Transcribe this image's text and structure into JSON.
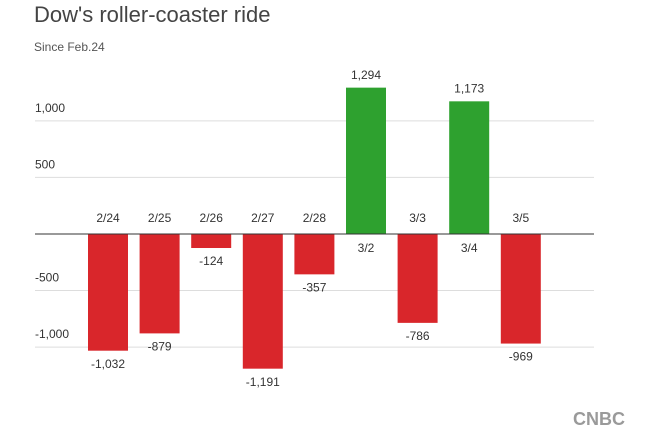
{
  "chart_data": {
    "type": "bar",
    "title": "Dow's roller-coaster ride",
    "subtitle": "Since Feb.24",
    "categories": [
      "2/24",
      "2/25",
      "2/26",
      "2/27",
      "2/28",
      "3/2",
      "3/3",
      "3/4",
      "3/5"
    ],
    "values": [
      -1032,
      -879,
      -124,
      -1191,
      -357,
      1294,
      -786,
      1173,
      -969
    ],
    "value_labels": [
      "-1,032",
      "-879",
      "-124",
      "-1,191",
      "-357",
      "1,294",
      "-786",
      "1,173",
      "-969"
    ],
    "colors": [
      "#d9262b",
      "#d9262b",
      "#d9262b",
      "#d9262b",
      "#d9262b",
      "#2ea12f",
      "#d9262b",
      "#2ea12f",
      "#d9262b"
    ],
    "ylim": [
      -1300,
      1450
    ],
    "yticks": [
      {
        "value": -1000,
        "label": "-1,000"
      },
      -500,
      500,
      {
        "value": 1000,
        "label": "1,000"
      }
    ],
    "grid": true,
    "logo": "CNBC"
  }
}
